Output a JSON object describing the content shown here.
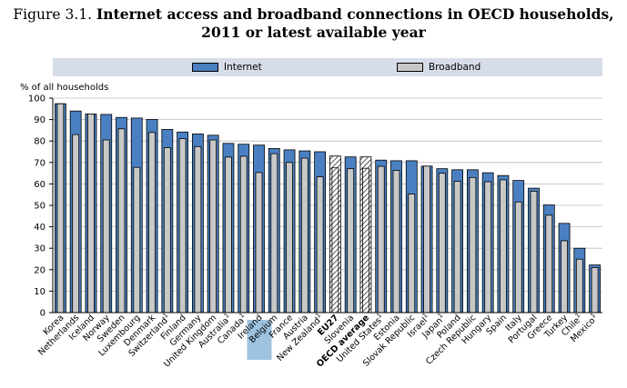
{
  "figure": {
    "number": "Figure 3.1.",
    "title_line1": "Internet access and broadband connections in OECD households,",
    "title_line2": "2011 or latest available year"
  },
  "legend": {
    "items": [
      {
        "label": "Internet",
        "color": "#4a7fc1"
      },
      {
        "label": "Broadband",
        "color": "#c8c8c8"
      }
    ]
  },
  "chart_data": {
    "type": "bar",
    "title": "Internet access and broadband connections in OECD households, 2011 or latest available year",
    "ylabel": "% of all households",
    "xlabel": "",
    "ylim": [
      0,
      100
    ],
    "yticks": [
      0,
      10,
      20,
      30,
      40,
      50,
      60,
      70,
      80,
      90,
      100
    ],
    "grid": true,
    "categories": [
      "Korea",
      "Netherlands",
      "Iceland",
      "Norway",
      "Sweden",
      "Luxembourg",
      "Denmark",
      "Switzerland¹",
      "Finland",
      "Germany",
      "United Kingdom",
      "Australia¹",
      "Canada¹",
      "Ireland",
      "Belgium",
      "France",
      "Austria",
      "New Zealand¹",
      "EU27",
      "Slovenia",
      "OECD average",
      "United States¹",
      "Estonia",
      "Slovak Republic",
      "Israel¹",
      "Japan¹",
      "Poland",
      "Czech Republic",
      "Hungary",
      "Spain",
      "Italy",
      "Portugal",
      "Greece",
      "Turkey",
      "Chile¹",
      "Mexico¹"
    ],
    "highlighted": [
      "Ireland"
    ],
    "aggregates": [
      "EU27",
      "OECD average"
    ],
    "series": [
      {
        "name": "Internet",
        "color": "#4a7fc1",
        "values": [
          97.4,
          94,
          92.6,
          92.4,
          91,
          90.7,
          90.1,
          85.4,
          84.2,
          83.3,
          82.7,
          78.9,
          78.5,
          78.1,
          76.5,
          75.9,
          75.4,
          75,
          73,
          72.6,
          72.6,
          71.1,
          70.8,
          70.8,
          68.3,
          67.1,
          66.6,
          66.6,
          65.2,
          63.9,
          61.6,
          58,
          50.2,
          41.6,
          30,
          22.2
        ]
      },
      {
        "name": "Broadband",
        "color": "#c8c8c8",
        "values": [
          97.4,
          83,
          92.6,
          80.5,
          85.7,
          67.7,
          84,
          76.9,
          81.1,
          77.4,
          80.5,
          72.5,
          72.9,
          65.3,
          74.1,
          70,
          72,
          63.3,
          67.5,
          67.1,
          67.3,
          68.2,
          66.3,
          55.3,
          68.3,
          65,
          61.2,
          63,
          61,
          61.9,
          51.6,
          56.6,
          45.4,
          33.5,
          24.9,
          21
        ]
      }
    ]
  }
}
